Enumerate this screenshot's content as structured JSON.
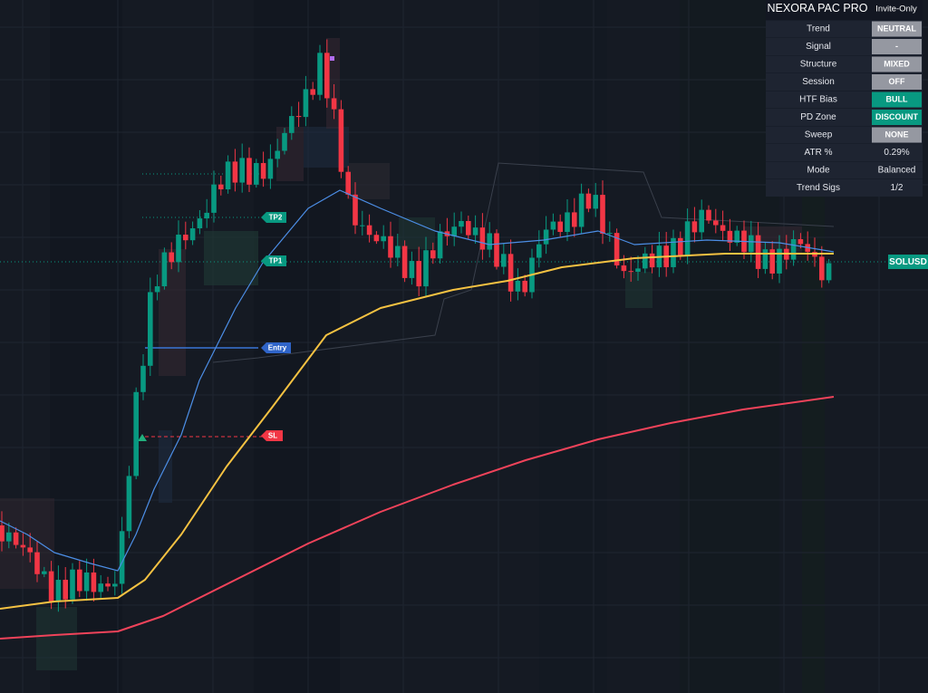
{
  "panel": {
    "title": "NEXORA PAC PRO",
    "badge": "Invite-Only",
    "rows": [
      {
        "label": "Trend",
        "value": "NEUTRAL"
      },
      {
        "label": "Signal",
        "value": "-"
      },
      {
        "label": "Structure",
        "value": "MIXED"
      },
      {
        "label": "Session",
        "value": "OFF"
      },
      {
        "label": "HTF Bias",
        "value": "BULL"
      },
      {
        "label": "PD Zone",
        "value": "DISCOUNT"
      },
      {
        "label": "Sweep",
        "value": "NONE"
      },
      {
        "label": "ATR %",
        "value": "0.29%"
      },
      {
        "label": "Mode",
        "value": "Balanced"
      },
      {
        "label": "Trend Sigs",
        "value": "1/2"
      }
    ]
  },
  "labels": {
    "tp2": "TP2",
    "tp1": "TP1",
    "entry": "Entry",
    "sl": "SL",
    "symbol": "SOLUSD"
  }
}
